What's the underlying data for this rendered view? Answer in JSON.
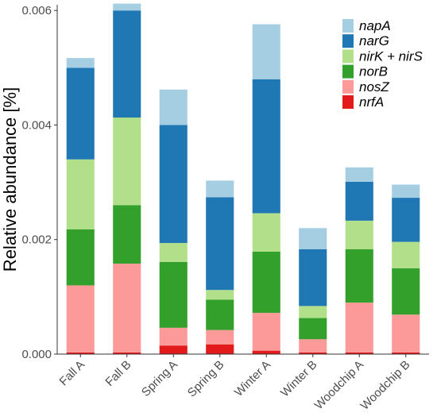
{
  "chart_data": {
    "type": "bar",
    "stacked": true,
    "ylabel": "Relative abundance [%]",
    "xlabel": "",
    "ylim": [
      0,
      0.0061
    ],
    "yticks": [
      "0.000",
      "0.002",
      "0.004",
      "0.006"
    ],
    "ytick_values": [
      0,
      0.002,
      0.004,
      0.006
    ],
    "grid": false,
    "legend_position": "top-right",
    "categories": [
      "Fall A",
      "Fall B",
      "Spring A",
      "Spring B",
      "Winter A",
      "Winter B",
      "Woodchip A",
      "Woodchip B"
    ],
    "series": [
      {
        "name": "nrfA",
        "color": "#e31a1c",
        "values": [
          3e-05,
          3e-05,
          0.00015,
          0.00017,
          6e-05,
          3e-05,
          3e-05,
          3e-05
        ]
      },
      {
        "name": "nosZ",
        "color": "#fb9a99",
        "values": [
          0.00117,
          0.00155,
          0.00031,
          0.00025,
          0.00066,
          0.00023,
          0.00087,
          0.00066
        ]
      },
      {
        "name": "norB",
        "color": "#33a02c",
        "values": [
          0.00098,
          0.00102,
          0.00115,
          0.00053,
          0.00107,
          0.00037,
          0.00093,
          0.00081
        ]
      },
      {
        "name": "nirK + nirS",
        "color": "#b2df8a",
        "values": [
          0.00122,
          0.00153,
          0.00033,
          0.00017,
          0.00067,
          0.00021,
          0.0005,
          0.00046
        ]
      },
      {
        "name": "narG",
        "color": "#1f78b4",
        "values": [
          0.0016,
          0.00187,
          0.00206,
          0.00162,
          0.00234,
          0.00099,
          0.00068,
          0.00077
        ]
      },
      {
        "name": "napA",
        "color": "#a6cee3",
        "values": [
          0.00017,
          0.00012,
          0.00062,
          0.00029,
          0.00096,
          0.00037,
          0.00025,
          0.00023
        ]
      }
    ],
    "legend_order": [
      "napA",
      "narG",
      "nirK + nirS",
      "norB",
      "nosZ",
      "nrfA"
    ]
  }
}
